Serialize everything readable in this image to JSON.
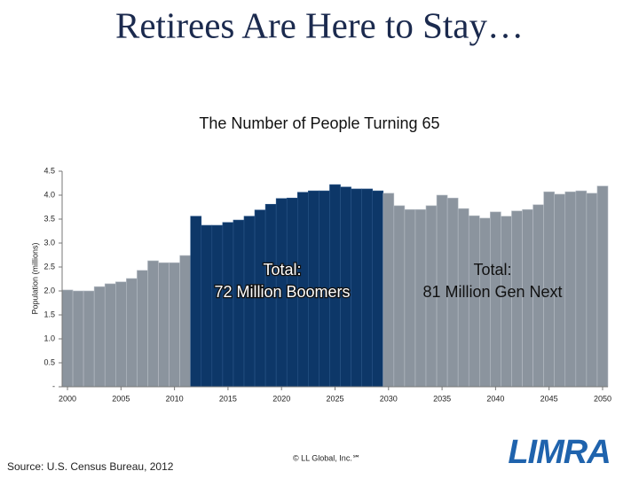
{
  "title": "Retirees Are Here to Stay…",
  "chart_data": {
    "type": "bar",
    "title": "The Number of People Turning 65",
    "y_label": "Population (millions)",
    "x": [
      2000,
      2001,
      2002,
      2003,
      2004,
      2005,
      2006,
      2007,
      2008,
      2009,
      2010,
      2011,
      2012,
      2013,
      2014,
      2015,
      2016,
      2017,
      2018,
      2019,
      2020,
      2021,
      2022,
      2023,
      2024,
      2025,
      2026,
      2027,
      2028,
      2029,
      2030,
      2031,
      2032,
      2033,
      2034,
      2035,
      2036,
      2037,
      2038,
      2039,
      2040,
      2041,
      2042,
      2043,
      2044,
      2045,
      2046,
      2047,
      2048,
      2049,
      2050
    ],
    "values": [
      2.02,
      2.0,
      2.0,
      2.09,
      2.15,
      2.19,
      2.26,
      2.43,
      2.63,
      2.59,
      2.59,
      2.74,
      3.56,
      3.37,
      3.37,
      3.43,
      3.48,
      3.56,
      3.69,
      3.81,
      3.93,
      3.94,
      4.06,
      4.09,
      4.09,
      4.22,
      4.17,
      4.13,
      4.13,
      4.09,
      4.04,
      3.78,
      3.7,
      3.7,
      3.78,
      4.0,
      3.94,
      3.72,
      3.57,
      3.52,
      3.65,
      3.56,
      3.67,
      3.7,
      3.8,
      4.07,
      4.02,
      4.07,
      4.09,
      4.04,
      4.19
    ],
    "color": "#8b949e",
    "highlight_range": [
      2012,
      2029
    ],
    "highlight_color": "#0d3768",
    "xlim": [
      1999.5,
      2050.5
    ],
    "xticks": [
      2000,
      2005,
      2010,
      2015,
      2020,
      2025,
      2030,
      2035,
      2040,
      2045,
      2050
    ],
    "ylim": [
      0,
      4.5
    ],
    "yticks": [
      {
        "value": 0,
        "label": "-"
      },
      0.5,
      {
        "value": 1.0,
        "label": "1.0"
      },
      1.5,
      {
        "value": 2.0,
        "label": "2.0"
      },
      2.5,
      {
        "value": 3.0,
        "label": "3.0"
      },
      3.5,
      {
        "value": 4.0,
        "label": "4.0"
      },
      4.5
    ],
    "annotations": [
      {
        "lines": [
          "Total:",
          "72 Million Boomers"
        ]
      },
      {
        "lines": [
          "Total:",
          "81 Million Gen Next"
        ]
      }
    ]
  },
  "source": "Source: U.S. Census Bureau, 2012",
  "copyright": "© LL Global, Inc.℠",
  "logo": "LIMRA"
}
